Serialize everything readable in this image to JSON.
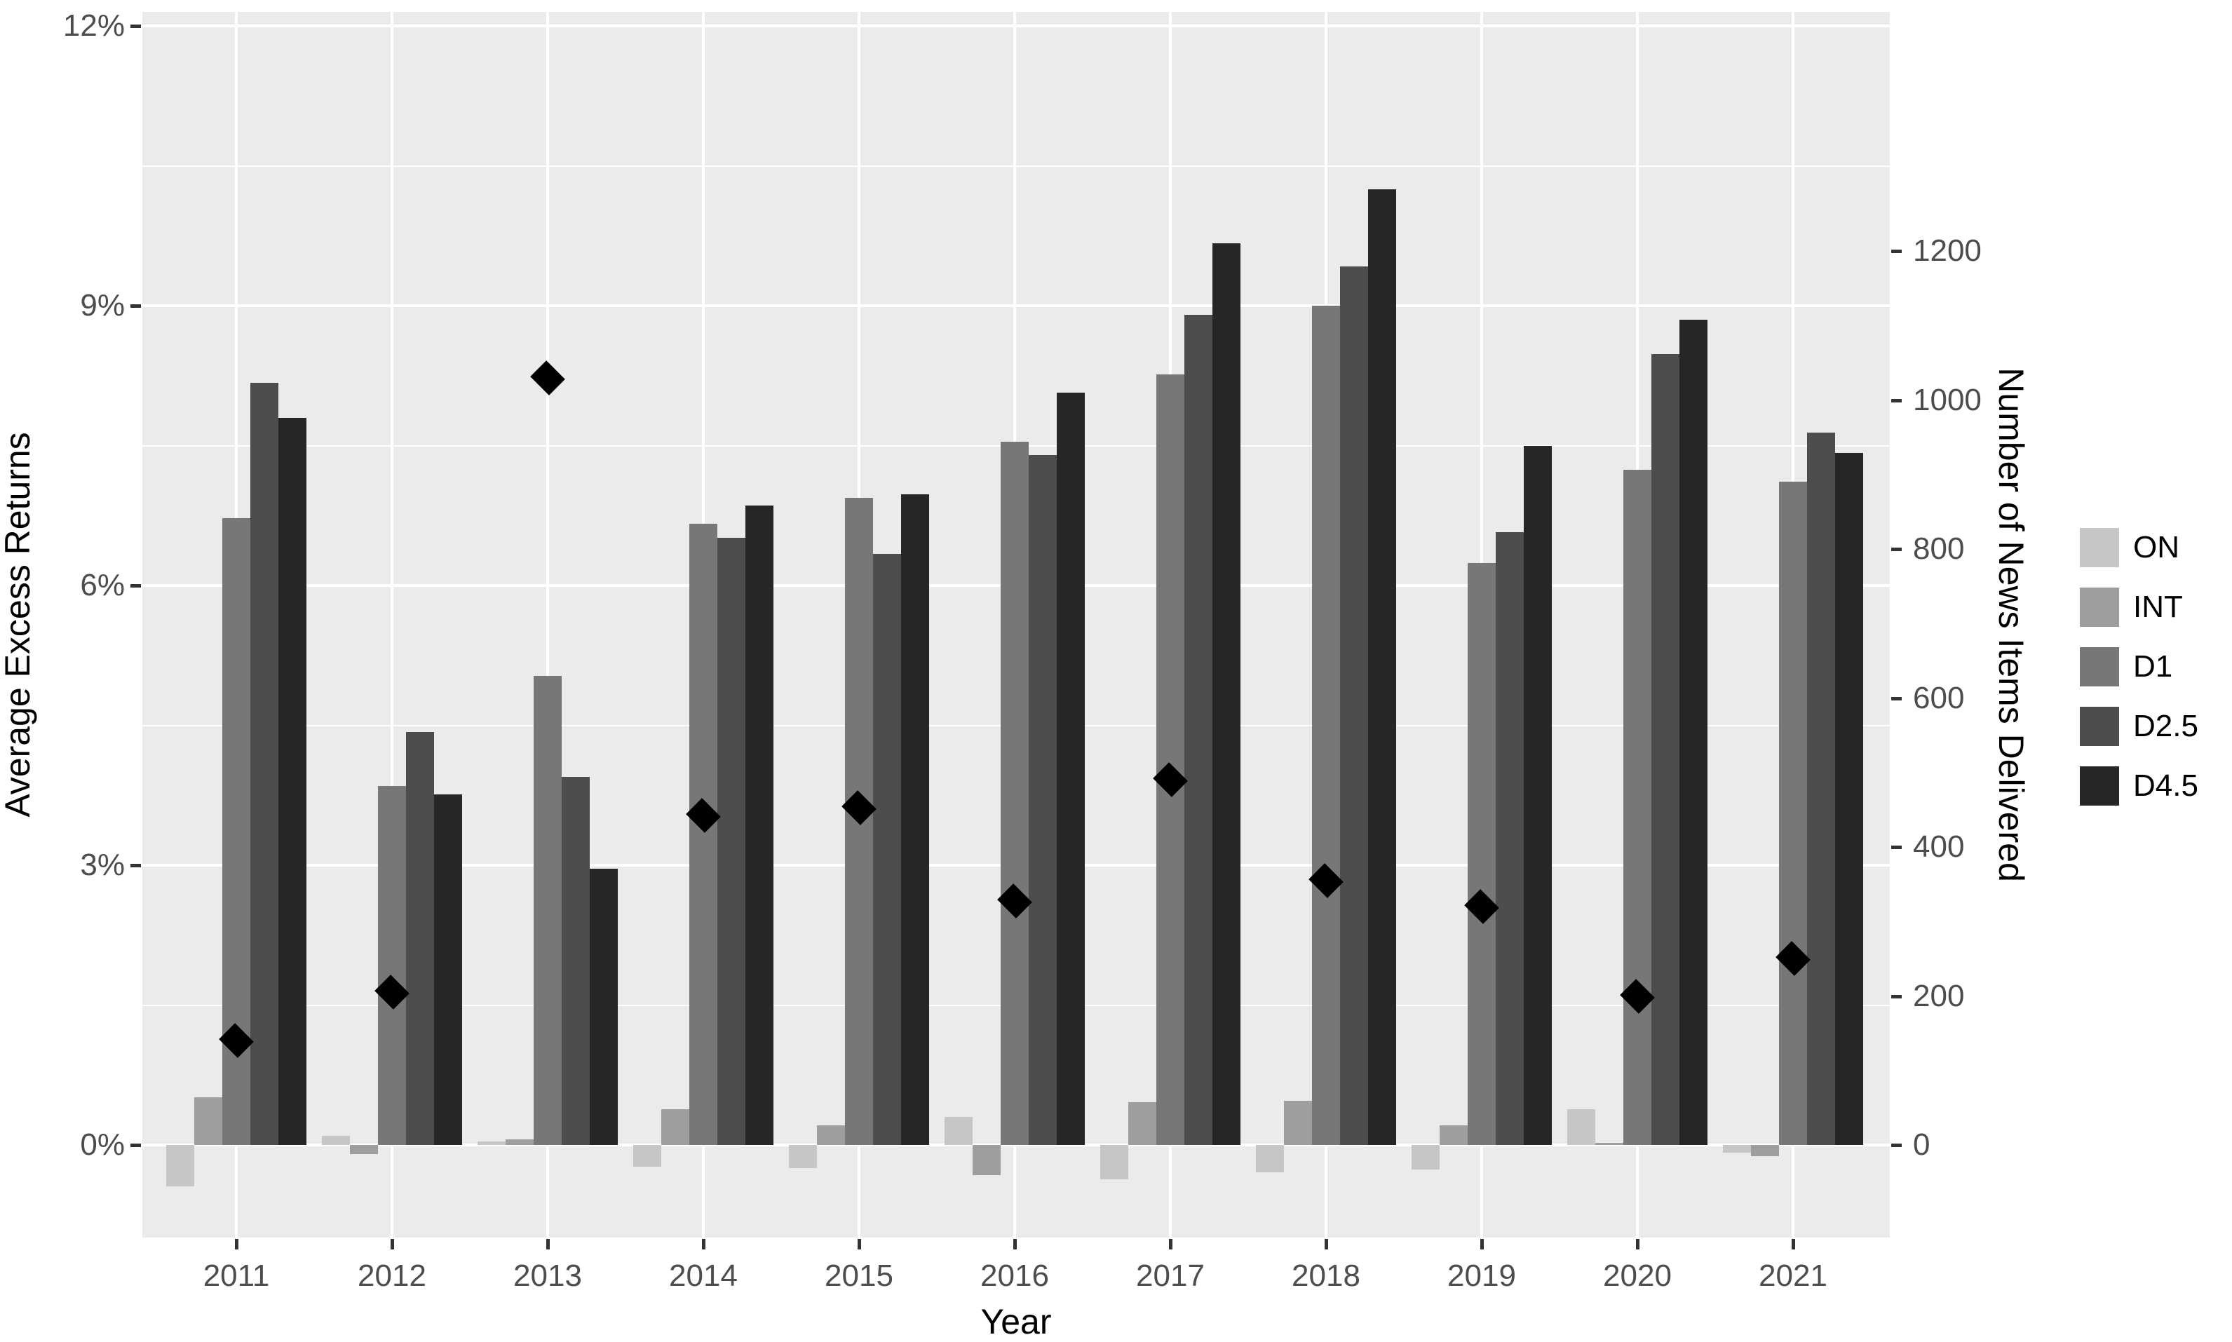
{
  "chart_data": {
    "type": "bar",
    "title": "",
    "xlabel": "Year",
    "ylabel_left": "Average Excess Returns",
    "ylabel_right": "Number of News Items Delivered",
    "categories": [
      "2011",
      "2012",
      "2013",
      "2014",
      "2015",
      "2016",
      "2017",
      "2018",
      "2019",
      "2020",
      "2021"
    ],
    "series": [
      {
        "name": "ON",
        "color": "#c6c6c6",
        "values_pct": [
          -0.44,
          0.1,
          0.04,
          -0.23,
          -0.25,
          0.3,
          -0.37,
          -0.29,
          -0.26,
          0.38,
          -0.08
        ]
      },
      {
        "name": "INT",
        "color": "#9e9e9e",
        "values_pct": [
          0.51,
          -0.1,
          0.06,
          0.38,
          0.21,
          -0.32,
          0.46,
          0.47,
          0.21,
          0.02,
          -0.12
        ]
      },
      {
        "name": "D1",
        "color": "#777777",
        "values_pct": [
          6.72,
          3.85,
          5.03,
          6.66,
          6.94,
          7.54,
          8.26,
          9.0,
          6.24,
          7.24,
          7.11
        ]
      },
      {
        "name": "D2.5",
        "color": "#4d4d4d",
        "values_pct": [
          8.17,
          4.43,
          3.95,
          6.51,
          6.34,
          7.4,
          8.9,
          9.42,
          6.57,
          8.48,
          7.64
        ]
      },
      {
        "name": "D4.5",
        "color": "#262626",
        "values_pct": [
          7.8,
          3.76,
          2.96,
          6.86,
          6.98,
          8.07,
          9.67,
          10.25,
          7.5,
          8.85,
          7.42
        ]
      }
    ],
    "point_series": {
      "name": "news-items-delivered",
      "marker": "diamond",
      "color": "#000000",
      "axis": "right",
      "values": [
        140,
        205,
        1030,
        442,
        453,
        328,
        490,
        355,
        320,
        200,
        250
      ]
    },
    "left_axis": {
      "tick_labels": [
        "0%",
        "3%",
        "6%",
        "9%",
        "12%"
      ],
      "tick_values": [
        0,
        3,
        6,
        9,
        12
      ],
      "minor_values": [
        1.5,
        4.5,
        7.5,
        10.5
      ],
      "range_pct": [
        -1.0,
        12.15
      ]
    },
    "right_axis": {
      "tick_labels": [
        "0",
        "200",
        "400",
        "600",
        "800",
        "1000",
        "1200"
      ],
      "tick_values": [
        0,
        200,
        400,
        600,
        800,
        1000,
        1200
      ],
      "units_per_pct": 125.2
    },
    "legend": {
      "entries": [
        "ON",
        "INT",
        "D1",
        "D2.5",
        "D4.5"
      ],
      "position": "right"
    },
    "grid": {
      "major_color": "#ffffff",
      "minor_color": "#ffffff",
      "panel_background": "#ebebeb"
    }
  },
  "colors": {
    "background": "#ffffff",
    "tick_text": "#4d4d4d",
    "axis_title_text": "#000000",
    "tick_mark": "#333333",
    "diamond": "#000000"
  }
}
